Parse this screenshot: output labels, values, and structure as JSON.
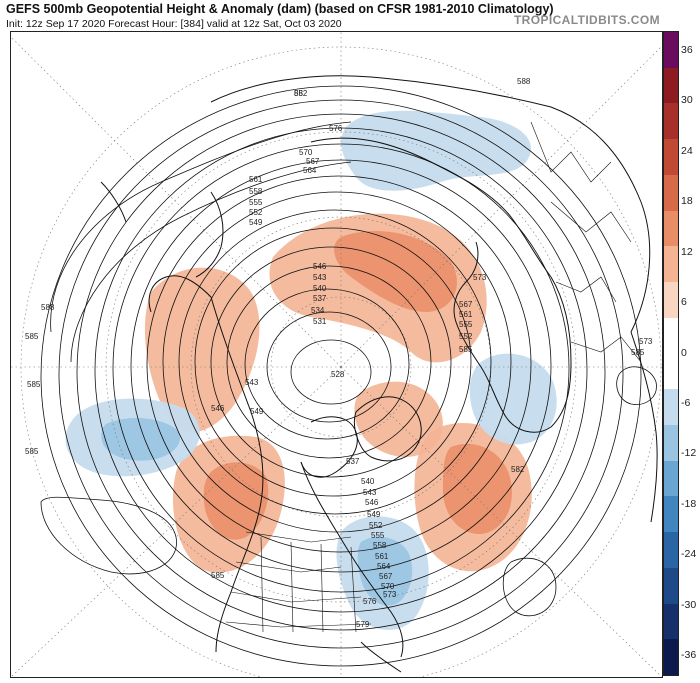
{
  "header": {
    "title": "GEFS 500mb Geopotential Height & Anomaly (dam) (based on CFSR 1981-2010 Climatology)",
    "subtitle": "Init: 12z Sep 17 2020   Forecast Hour: [384]   valid at 12z Sat, Oct 03 2020",
    "brand": "TROPICALTIDBITS.COM"
  },
  "colorbar": {
    "labels": [
      "36",
      "30",
      "24",
      "18",
      "12",
      "6",
      "0",
      "-6",
      "-12",
      "-18",
      "-24",
      "-30",
      "-36"
    ],
    "colors": [
      "#6a0d5f",
      "#8e1a22",
      "#a8302a",
      "#c04a34",
      "#d76a48",
      "#e98d66",
      "#f4b493",
      "#f9d6c1",
      "#ffffff",
      "#ffffff",
      "#c5dcee",
      "#99c4e2",
      "#6aa6d2",
      "#4286bf",
      "#2a66a6",
      "#1f4a8a",
      "#16306c",
      "#0d1a4e"
    ]
  },
  "map": {
    "contour_labels": [
      "582",
      "576",
      "570",
      "567",
      "564",
      "561",
      "558",
      "555",
      "552",
      "549",
      "546",
      "543",
      "540",
      "537",
      "534",
      "531",
      "528",
      "573",
      "585",
      "588",
      "585",
      "585",
      "585",
      "546",
      "543",
      "549",
      "537",
      "540",
      "543",
      "546",
      "549",
      "552",
      "555",
      "558",
      "561",
      "564",
      "567",
      "570",
      "573",
      "576",
      "579",
      "582",
      "585",
      "585",
      "552",
      "555",
      "561",
      "567",
      "573",
      "588",
      "85"
    ]
  }
}
